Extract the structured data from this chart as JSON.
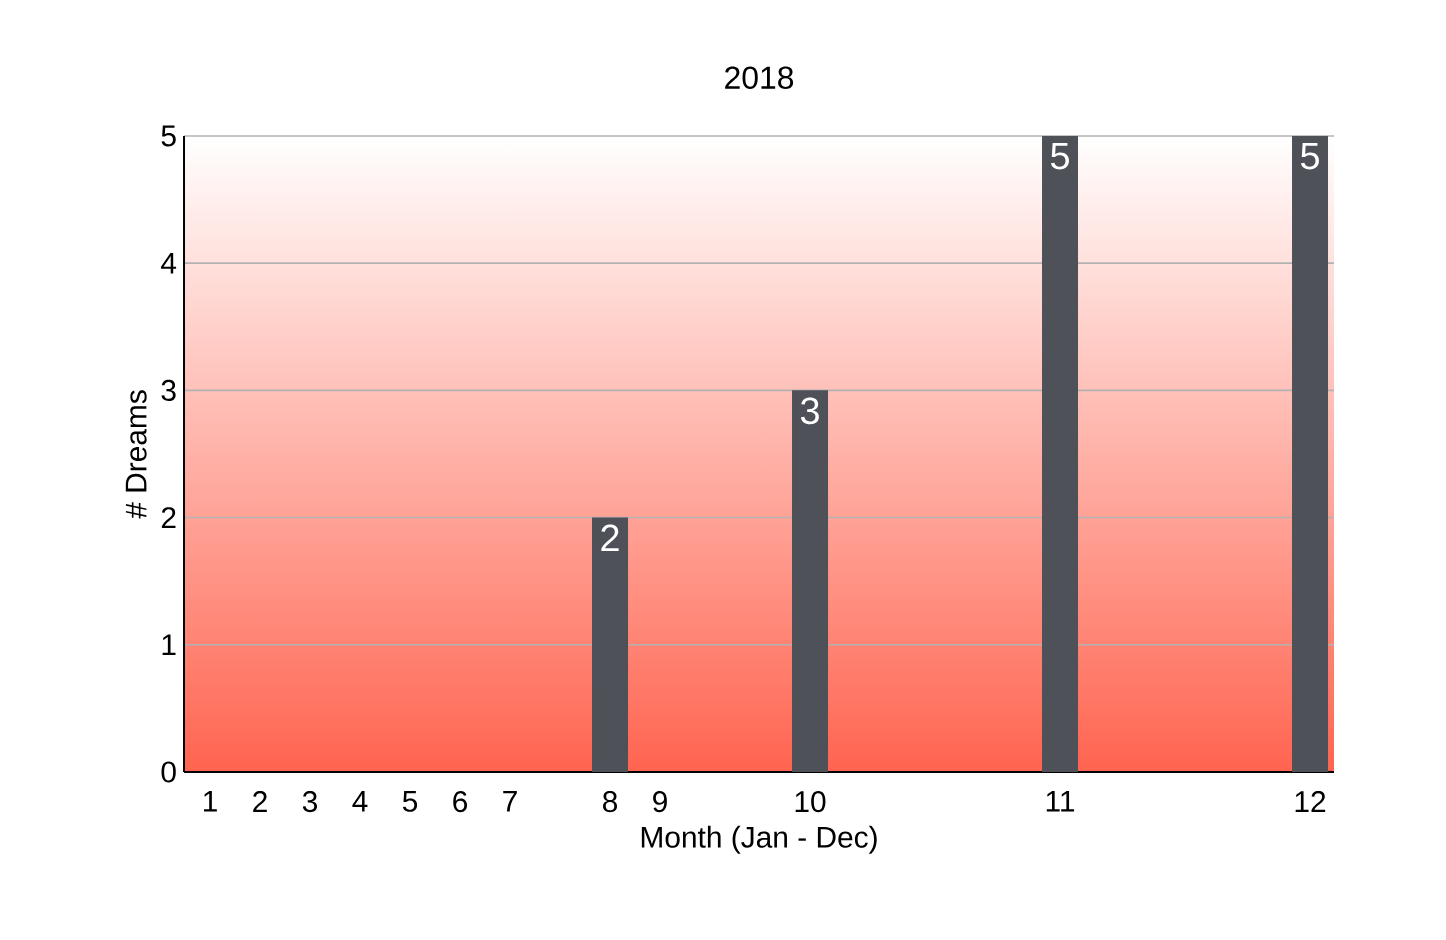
{
  "chart_data": {
    "type": "bar",
    "title": "2018",
    "xlabel": "Month (Jan - Dec)",
    "ylabel": "# Dreams",
    "categories": [
      "1",
      "2",
      "3",
      "4",
      "5",
      "6",
      "7",
      null,
      "8",
      "9",
      null,
      null,
      "10",
      null,
      null,
      null,
      null,
      "11",
      null,
      null,
      null,
      null,
      "12"
    ],
    "values": [
      0,
      0,
      0,
      0,
      0,
      0,
      0,
      null,
      2,
      0,
      null,
      null,
      3,
      null,
      null,
      null,
      null,
      5,
      null,
      null,
      null,
      null,
      5
    ],
    "value_labels": [
      null,
      null,
      null,
      null,
      null,
      null,
      null,
      null,
      "2",
      null,
      null,
      null,
      "3",
      null,
      null,
      null,
      null,
      "5",
      null,
      null,
      null,
      null,
      "5"
    ],
    "color": "#4f5159",
    "ylim": [
      0,
      5
    ],
    "yticks": [
      0,
      1,
      2,
      3,
      4,
      5
    ],
    "grid": "y"
  }
}
